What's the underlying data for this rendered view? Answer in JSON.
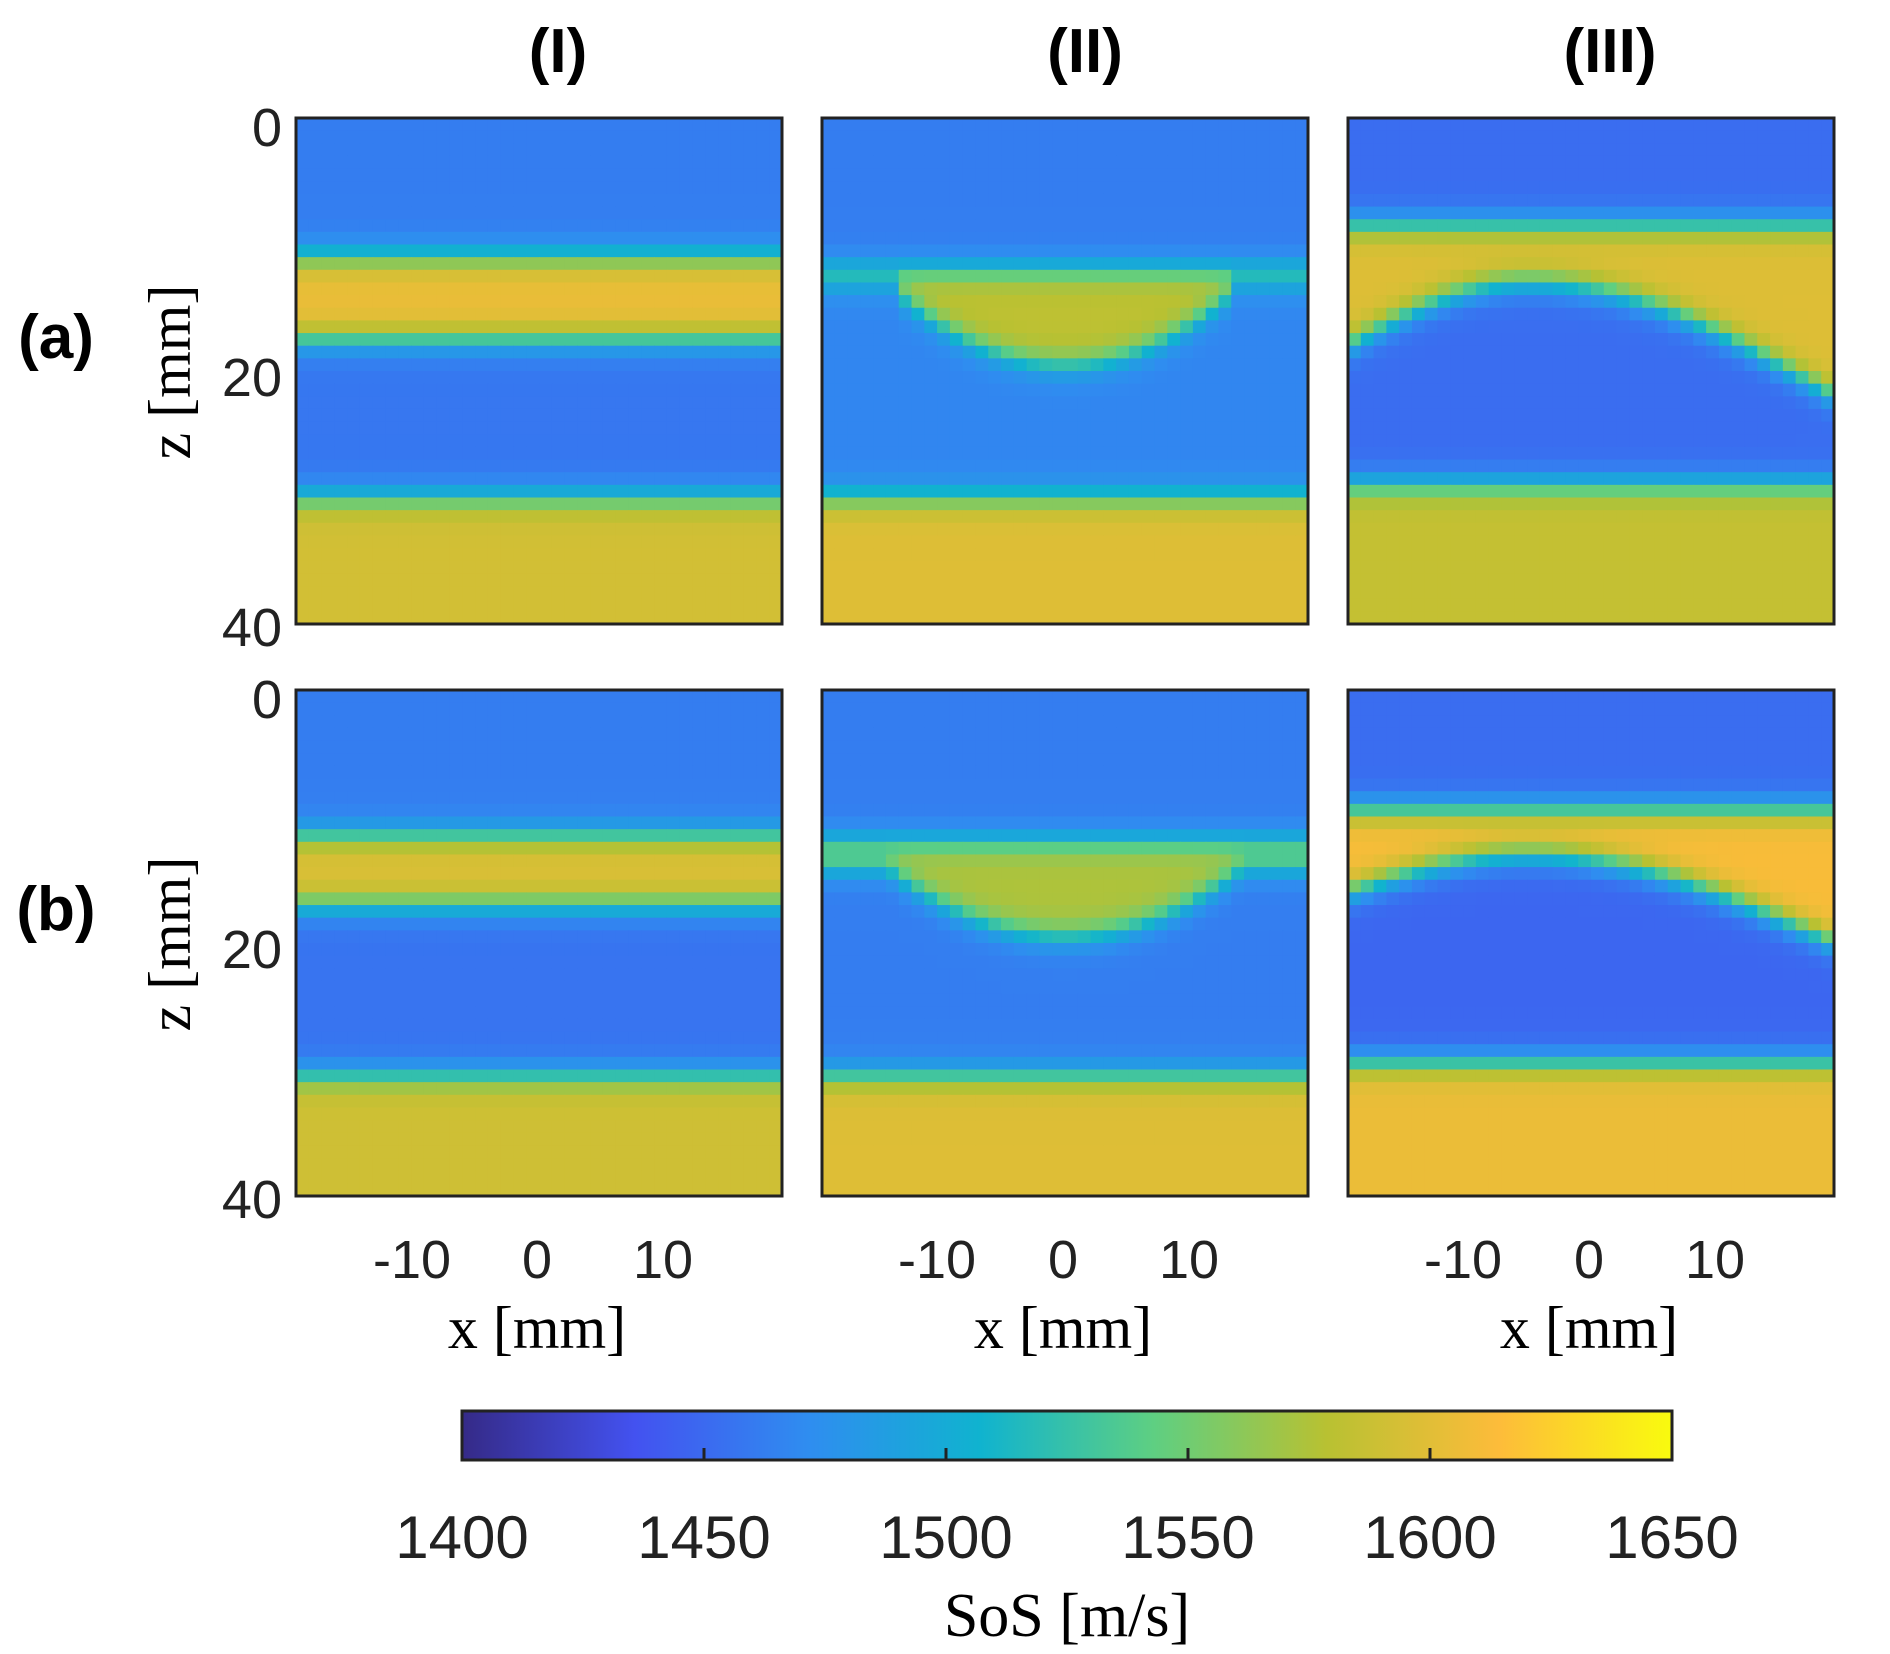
{
  "column_labels": [
    "(I)",
    "(II)",
    "(III)"
  ],
  "row_labels": [
    "(a)",
    "(b)"
  ],
  "colors": {
    "parula": [
      "#352a87",
      "#4352f0",
      "#2f8df0",
      "#10b3cf",
      "#5ecf82",
      "#b8c132",
      "#fdbc3a",
      "#f9fb0e"
    ]
  },
  "chart_data": {
    "type": "heatmap",
    "layout": "2 rows x 3 columns of SoS maps sharing one colorbar",
    "x_axis": {
      "label": "x [mm]",
      "ticks": [
        -10,
        0,
        10
      ],
      "tick_labels": [
        "-10",
        "0",
        "10"
      ],
      "range": [
        -19,
        19
      ]
    },
    "z_axis": {
      "label": "z [mm]",
      "ticks": [
        0,
        20,
        40
      ],
      "tick_labels": [
        "0",
        "20",
        "40"
      ],
      "range": [
        0,
        40
      ],
      "reversed": true
    },
    "colorbar": {
      "label": "SoS [m/s]",
      "range": [
        1400,
        1650
      ],
      "ticks": [
        1400,
        1450,
        1500,
        1550,
        1600,
        1650
      ],
      "tick_labels": [
        "1400",
        "1450",
        "1500",
        "1550",
        "1600",
        "1650"
      ],
      "colormap": "parula"
    },
    "sos_levels_m_s": {
      "top_layer": 1462,
      "layer_I_band": 1605,
      "layer_I_middle": 1458,
      "layer_II_lens": 1582,
      "layer_II_middle": 1467,
      "layer_III_band": 1598,
      "layer_III_middle": 1452,
      "bottom_layer": 1592
    },
    "panels": [
      {
        "row": "(a)",
        "column": "(I)",
        "geometry": "flat band",
        "band_top_mm": 11,
        "band_bottom_mm": 17.5,
        "bottom_layer_from_mm": 30,
        "top_layer_sos": 1462,
        "band_sos": 1605,
        "middle_sos": 1458,
        "bottom_sos": 1592
      },
      {
        "row": "(a)",
        "column": "(II)",
        "geometry": "concave lens",
        "band_top_mm": 12,
        "band_bottom_edge_mm": 13,
        "band_bottom_center_mm": 19.5,
        "lens_half_width_mm": 14,
        "bottom_layer_from_mm": 30,
        "top_layer_sos": 1462,
        "band_sos": 1582,
        "middle_sos": 1467,
        "bottom_sos": 1598
      },
      {
        "row": "(a)",
        "column": "(III)",
        "geometry": "curved interface",
        "band_top_mm": 8.5,
        "interface_left_mm": 18,
        "interface_peak_mm": 13,
        "interface_peak_x_mm": -5,
        "interface_right_mm": 22,
        "bottom_layer_from_mm": 29,
        "top_layer_sos": 1452,
        "band_sos": 1598,
        "middle_sos": 1452,
        "bottom_sos": 1585
      },
      {
        "row": "(b)",
        "column": "(I)",
        "geometry": "flat band",
        "band_top_mm": 11.5,
        "band_bottom_mm": 17,
        "bottom_layer_from_mm": 30.5,
        "top_layer_sos": 1462,
        "band_sos": 1598,
        "middle_sos": 1456,
        "bottom_sos": 1590
      },
      {
        "row": "(b)",
        "column": "(II)",
        "geometry": "concave lens",
        "band_top_mm": 12,
        "band_bottom_edge_mm": 14,
        "band_bottom_center_mm": 19.5,
        "lens_half_width_mm": 14,
        "bottom_layer_from_mm": 30.5,
        "top_layer_sos": 1462,
        "band_sos": 1575,
        "middle_sos": 1462,
        "bottom_sos": 1598
      },
      {
        "row": "(b)",
        "column": "(III)",
        "geometry": "curved interface",
        "band_top_mm": 9.5,
        "interface_left_mm": 16,
        "interface_peak_mm": 13,
        "interface_peak_x_mm": -5,
        "interface_right_mm": 20,
        "bottom_layer_from_mm": 29.5,
        "top_layer_sos": 1452,
        "band_sos": 1612,
        "middle_sos": 1448,
        "bottom_sos": 1605
      }
    ]
  }
}
